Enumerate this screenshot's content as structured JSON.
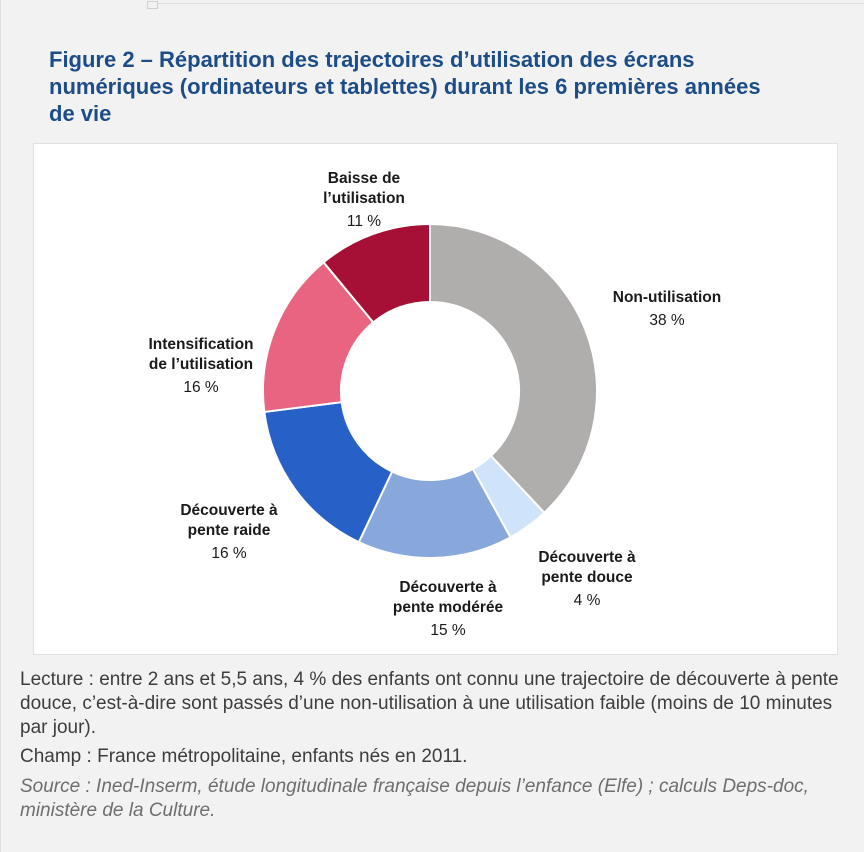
{
  "page": {
    "background_color": "#f2f2f2",
    "card_background_color": "#ffffff"
  },
  "figure": {
    "title": "Figure 2 – Répartition des trajectoires d’utilisation des écrans numériques (ordinateurs et tablettes) durant les 6 premières années de vie",
    "title_color": "#1d4d88"
  },
  "notes": {
    "lecture": "Lecture : entre 2 ans et 5,5 ans, 4 % des enfants ont connu une trajectoire de découverte à pente douce, c’est-à-dire sont passés d’une non-utilisation à une utilisation faible (moins de 10 minutes par jour).",
    "champ": "Champ : France métropolitaine, enfants nés en 2011.",
    "source": "Source : Ined-Inserm, étude longitudinale française depuis l’enfance (Elfe) ; calculs Deps-doc, ministère de la Culture."
  },
  "chart_data": {
    "type": "pie",
    "subtype": "donut",
    "title": "Répartition des trajectoires d’utilisation des écrans numériques (ordinateurs et tablettes) durant les 6 premières années de vie",
    "units": "%",
    "direction": "clockwise",
    "start_angle_deg": 0,
    "inner_radius_ratio": 0.533,
    "gap_stroke_color": "#ffffff",
    "slices": [
      {
        "name": "Non-utilisation",
        "value": 38,
        "color": "#b0adad",
        "label": "Non-utilisation",
        "value_label": "38 %"
      },
      {
        "name": "Découverte à pente douce",
        "value": 4,
        "color": "#cfe4fb",
        "label": "Découverte à\npente douce",
        "value_label": "4 %"
      },
      {
        "name": "Découverte à pente modérée",
        "value": 15,
        "color": "#88a8db",
        "label": "Découverte à\npente modérée",
        "value_label": "15 %"
      },
      {
        "name": "Découverte à pente raide",
        "value": 16,
        "color": "#2761c7",
        "label": "Découverte à\npente raide",
        "value_label": "16 %"
      },
      {
        "name": "Intensification de l’utilisation",
        "value": 16,
        "color": "#e86480",
        "label": "Intensification\nde l’utilisation",
        "value_label": "16 %"
      },
      {
        "name": "Baisse de l’utilisation",
        "value": 11,
        "color": "#a61037",
        "label": "Baisse de\nl’utilisation",
        "value_label": "11 %"
      }
    ]
  }
}
